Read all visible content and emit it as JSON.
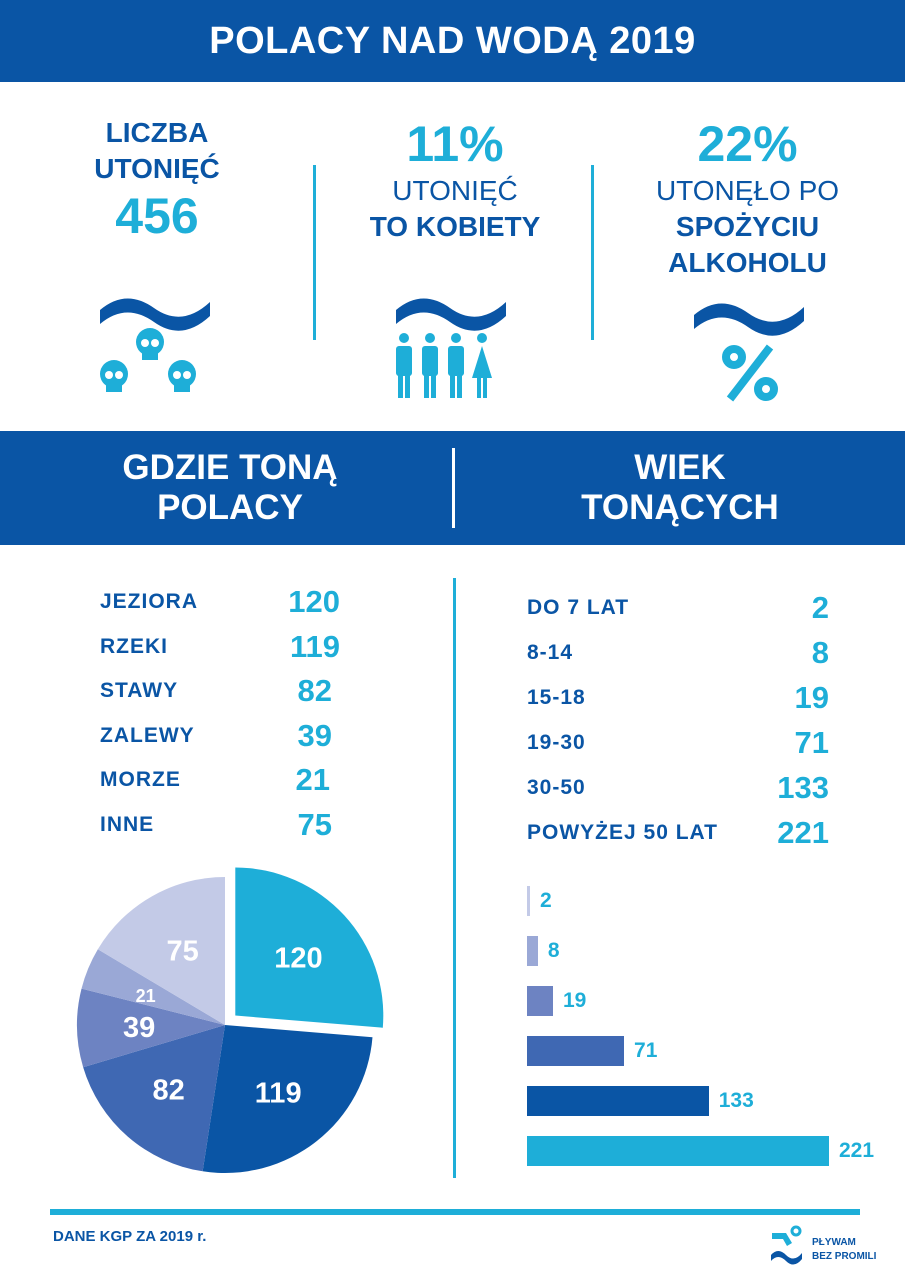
{
  "header": {
    "title": "POLACY NAD WODĄ 2019"
  },
  "stats": [
    {
      "line1": "LICZBA",
      "line2": "UTONIĘĆ",
      "value": "456",
      "icon": "wave-skulls-icon"
    },
    {
      "value": "11%",
      "line1": "UTONIĘĆ",
      "line2": "TO KOBIETY",
      "icon": "wave-people-icon"
    },
    {
      "value": "22%",
      "line1": "UTONĘŁO PO",
      "line2": "SPOŻYCIU",
      "line3": "ALKOHOLU",
      "icon": "wave-percent-icon"
    }
  ],
  "sections": {
    "left_title_line1": "GDZIE TONĄ",
    "left_title_line2": "POLACY",
    "right_title_line1": "WIEK",
    "right_title_line2": "TONĄCYCH"
  },
  "places": [
    {
      "label": "JEZIORA",
      "value": "120"
    },
    {
      "label": "RZEKI",
      "value": "119"
    },
    {
      "label": "STAWY",
      "value": "82"
    },
    {
      "label": "ZALEWY",
      "value": "39"
    },
    {
      "label": "MORZE",
      "value": "21"
    },
    {
      "label": "INNE",
      "value": "75"
    }
  ],
  "ages": [
    {
      "label": "DO 7 LAT",
      "value": "2"
    },
    {
      "label": "8-14",
      "value": "8"
    },
    {
      "label": "15-18",
      "value": "19"
    },
    {
      "label": "19-30",
      "value": "71"
    },
    {
      "label": "30-50",
      "value": "133"
    },
    {
      "label": "POWYŻEJ 50 LAT",
      "value": "221"
    }
  ],
  "colors": {
    "dark_blue": "#0a55a5",
    "cyan": "#1eaed8",
    "mid_blue": "#3f68b3",
    "slate_blue": "#6d83c2",
    "light_slate": "#9aa8d6",
    "pale": "#c3cae7"
  },
  "chart_data": [
    {
      "type": "pie",
      "title": "GDZIE TONĄ POLACY",
      "categories": [
        "JEZIORA",
        "RZEKI",
        "STAWY",
        "ZALEWY",
        "MORZE",
        "INNE"
      ],
      "values": [
        120,
        119,
        82,
        39,
        21,
        75
      ],
      "colors": [
        "#1eaed8",
        "#0a55a5",
        "#3f68b3",
        "#6d83c2",
        "#9aa8d6",
        "#c3cae7"
      ],
      "exploded": [
        "JEZIORA"
      ]
    },
    {
      "type": "bar",
      "orientation": "horizontal",
      "title": "WIEK TONĄCYCH",
      "categories": [
        "DO 7 LAT",
        "8-14",
        "15-18",
        "19-30",
        "30-50",
        "POWYŻEJ 50 LAT"
      ],
      "values": [
        2,
        8,
        19,
        71,
        133,
        221
      ],
      "colors": [
        "#c3cae7",
        "#9aa8d6",
        "#6d83c2",
        "#3f68b3",
        "#0a55a5",
        "#1eaed8"
      ]
    }
  ],
  "footer": {
    "source": "DANE KGP ZA 2019 r.",
    "logo_line1": "PŁYWAM",
    "logo_line2": "BEZ PROMILI"
  }
}
